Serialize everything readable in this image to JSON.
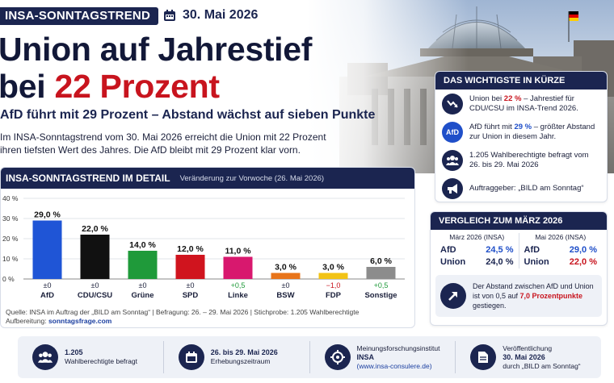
{
  "header": {
    "tag": "INSA-SONNTAGSTREND",
    "date": "30. Mai 2026",
    "headline_line1": "Union auf Jahrestief",
    "headline_line2_prefix": "bei ",
    "headline_line2_highlight": "22 Prozent",
    "subhead": "AfD führt mit 29 Prozent – Abstand wächst auf sieben Punkte",
    "intro": "Im INSA-Sonntagstrend vom 30. Mai 2026 erreicht die Union mit 22 Prozent ihren tiefsten Wert des Jahres. Die AfD bleibt mit 29 Prozent klar vorn."
  },
  "chart_panel": {
    "title": "INSA-SONNTAGSTREND IM DETAIL",
    "subtitle": "Veränderung zur Vorwoche (26. Mai 2026)",
    "source": "Quelle: INSA im Auftrag der „BILD am Sonntag“  |  Befragung: 26. – 29. Mai 2026  |  Stichprobe: 1.205 Wahlberechtigte",
    "editing_prefix": "Aufbereitung: ",
    "editing_link": "sonntagsfrage.com"
  },
  "chart_data": {
    "type": "bar",
    "categories": [
      "AfD",
      "CDU/CSU",
      "Grüne",
      "SPD",
      "Linke",
      "BSW",
      "FDP",
      "Sonstige"
    ],
    "values": [
      29.0,
      22.0,
      14.0,
      12.0,
      11.0,
      3.0,
      3.0,
      6.0
    ],
    "value_labels": [
      "29,0 %",
      "22,0 %",
      "14,0 %",
      "12,0 %",
      "11,0 %",
      "3,0 %",
      "3,0 %",
      "6,0 %"
    ],
    "changes": [
      "±0",
      "±0",
      "±0",
      "±0",
      "+0,5",
      "±0",
      "−1,0",
      "+0,5"
    ],
    "change_colors": [
      "#1a1f3a",
      "#1a1f3a",
      "#1a1f3a",
      "#1a1f3a",
      "#1f9a3a",
      "#1a1f3a",
      "#c8141e",
      "#1f9a3a"
    ],
    "colors": [
      "#1f55d6",
      "#111111",
      "#1f9a3a",
      "#d0141e",
      "#d8186e",
      "#e8741a",
      "#f2c316",
      "#8c8c8c"
    ],
    "yticks": [
      "40 %",
      "30 %",
      "20 %",
      "10 %",
      "0 %"
    ],
    "ytick_values": [
      40,
      30,
      20,
      10,
      0
    ],
    "ylim": [
      0,
      40
    ],
    "grid": true
  },
  "summary": {
    "title": "DAS WICHTIGSTE IN KÜRZE",
    "items": [
      {
        "pre": "Union bei ",
        "hl": "22 %",
        "post": " – Jahrestief für CDU/CSU im INSA-Trend 2026.",
        "icon": "trend-down-icon"
      },
      {
        "pre": "AfD führt mit ",
        "hl": "29 %",
        "post": " – größter Abstand zur Union in diesem Jahr.",
        "icon": "afd-badge-icon",
        "icon_text": "AfD"
      },
      {
        "pre": "1.205 Wahlberechtigte befragt vom 26. bis 29. Mai 2026",
        "hl": "",
        "post": "",
        "icon": "people-icon"
      },
      {
        "pre": "Auftraggeber: „BILD am Sonntag“",
        "hl": "",
        "post": "",
        "icon": "megaphone-icon"
      }
    ]
  },
  "compare": {
    "title": "VERGLEICH ZUM MÄRZ 2026",
    "left_header": "März 2026 (INSA)",
    "right_header": "Mai 2026 (INSA)",
    "left_rows": [
      {
        "name": "AfD",
        "value": "24,5 %"
      },
      {
        "name": "Union",
        "value": "24,0 %"
      }
    ],
    "right_rows": [
      {
        "name": "AfD",
        "value": "29,0 %"
      },
      {
        "name": "Union",
        "value": "22,0 %"
      }
    ],
    "note_pre": "Der Abstand zwischen AfD und Union ist von 0,5 auf ",
    "note_hl": "7,0 Prozentpunkte",
    "note_post": " gestiegen."
  },
  "bottom": {
    "items": [
      {
        "bold": "1.205",
        "text": "Wahlberechtigte befragt",
        "icon": "people-icon"
      },
      {
        "bold": "26. bis 29. Mai 2026",
        "text": "Erhebungszeitraum",
        "icon": "calendar-icon"
      },
      {
        "pre": "Meinungsforschungsinstitut",
        "bold": "INSA",
        "link": "(www.insa-consulere.de)",
        "icon": "target-icon"
      },
      {
        "pre": "Veröffentlichung",
        "bold": "30. Mai 2026",
        "text": "durch „BILD am Sonntag“",
        "icon": "document-icon"
      }
    ]
  }
}
